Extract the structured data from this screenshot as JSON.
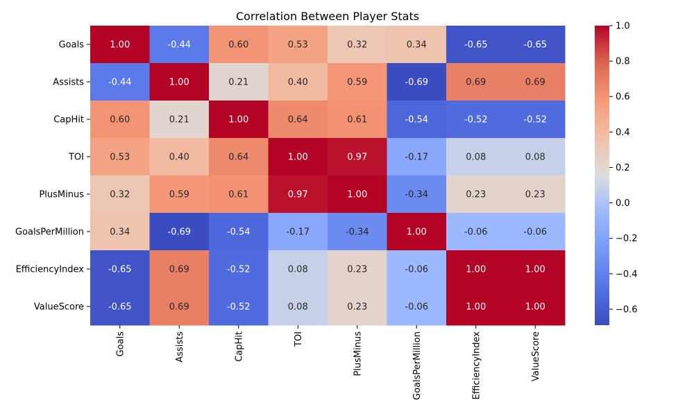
{
  "chart_data": {
    "type": "heatmap",
    "title": "Correlation Between Player Stats",
    "xlabel": "",
    "ylabel": "",
    "rows": [
      "Goals",
      "Assists",
      "CapHit",
      "TOI",
      "PlusMinus",
      "GoalsPerMillion",
      "EfficiencyIndex",
      "ValueScore"
    ],
    "columns": [
      "Goals",
      "Assists",
      "CapHit",
      "TOI",
      "PlusMinus",
      "GoalsPerMillion",
      "EfficiencyIndex",
      "ValueScore"
    ],
    "values": [
      [
        1.0,
        -0.44,
        0.6,
        0.53,
        0.32,
        0.34,
        -0.65,
        -0.65
      ],
      [
        -0.44,
        1.0,
        0.21,
        0.4,
        0.59,
        -0.69,
        0.69,
        0.69
      ],
      [
        0.6,
        0.21,
        1.0,
        0.64,
        0.61,
        -0.54,
        -0.52,
        -0.52
      ],
      [
        0.53,
        0.4,
        0.64,
        1.0,
        0.97,
        -0.17,
        0.08,
        0.08
      ],
      [
        0.32,
        0.59,
        0.61,
        0.97,
        1.0,
        -0.34,
        0.23,
        0.23
      ],
      [
        0.34,
        -0.69,
        -0.54,
        -0.17,
        -0.34,
        1.0,
        -0.06,
        -0.06
      ],
      [
        -0.65,
        0.69,
        -0.52,
        0.08,
        0.23,
        -0.06,
        1.0,
        1.0
      ],
      [
        -0.65,
        0.69,
        -0.52,
        0.08,
        0.23,
        -0.06,
        1.0,
        1.0
      ]
    ],
    "value_format": "2 decimals",
    "colormap": "coolwarm",
    "color_range": [
      -0.69,
      1.0
    ],
    "colorbar": {
      "ticks": [
        1.0,
        0.8,
        0.6,
        0.4,
        0.2,
        0.0,
        -0.2,
        -0.4,
        -0.6
      ],
      "tick_labels": [
        "1.0",
        "0.8",
        "0.6",
        "0.4",
        "0.2",
        "0.0",
        "−0.2",
        "−0.4",
        "−0.6"
      ],
      "placement": "right"
    },
    "grid": false
  }
}
